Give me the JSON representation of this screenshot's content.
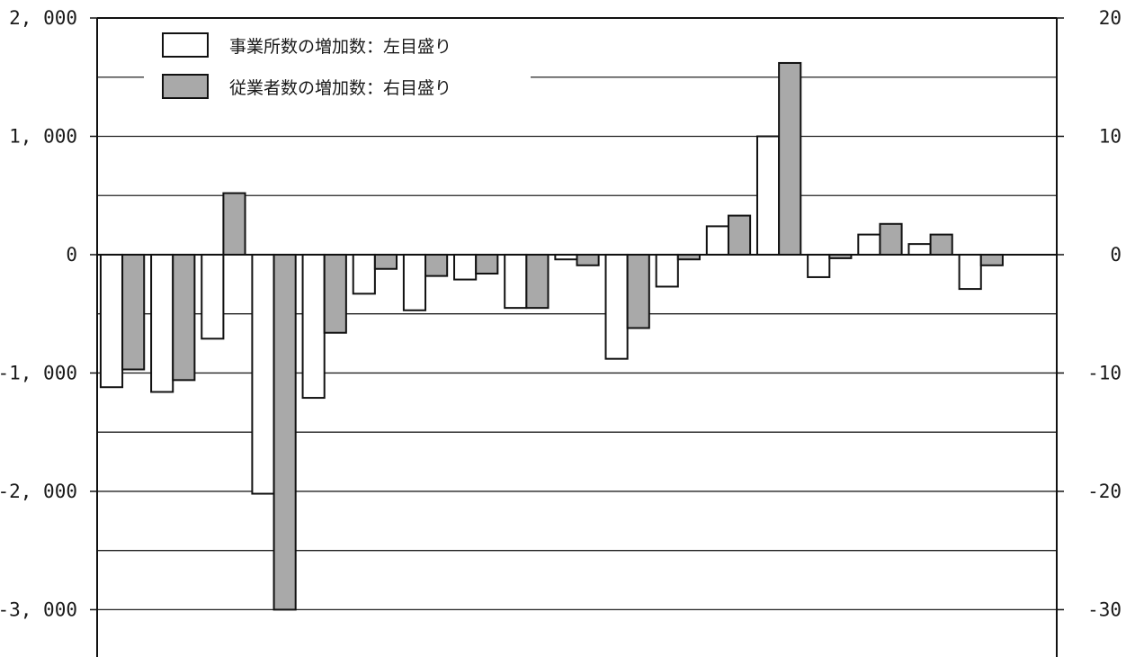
{
  "chart_data": {
    "type": "bar",
    "categories": [
      "",
      "",
      "",
      "",
      "",
      "",
      "",
      "",
      "",
      "",
      "",
      "",
      "",
      "",
      "",
      "",
      "",
      "",
      ""
    ],
    "series": [
      {
        "name": "事業所数の増加数：左目盛り",
        "axis": "left",
        "color": "#ffffff",
        "values": [
          -1120,
          -1160,
          -710,
          -2020,
          -1210,
          -330,
          -470,
          -210,
          -450,
          -40,
          -880,
          -270,
          240,
          1000,
          -190,
          170,
          90,
          -290,
          null
        ]
      },
      {
        "name": "従業者数の増加数：右目盛り",
        "axis": "right",
        "color": "#a9a9a9",
        "values": [
          -9.7,
          -10.6,
          5.2,
          -30,
          -6.6,
          -1.2,
          -1.8,
          -1.6,
          -4.5,
          -0.9,
          -6.2,
          -0.4,
          3.3,
          16.2,
          -0.3,
          2.6,
          1.7,
          -0.9,
          null
        ]
      }
    ],
    "left_axis": {
      "ylim": [
        -3400,
        2000
      ],
      "ticks": [
        2000,
        1000,
        0,
        -1000,
        -2000,
        -3000
      ],
      "tick_labels": [
        "2, 000",
        "1, 000",
        "0",
        "-1, 000",
        "-2, 000",
        "-3, 000"
      ]
    },
    "right_axis": {
      "ylim": [
        -34,
        20
      ],
      "ticks": [
        20,
        10,
        0,
        -10,
        -20,
        -30
      ],
      "tick_labels": [
        "20",
        "10",
        "0",
        "-10",
        "-20",
        "-30"
      ]
    },
    "grid_values": [
      1500,
      1000,
      500,
      -500,
      -1000,
      -1500,
      -2000,
      -2500,
      -3000
    ],
    "grid": true,
    "legend_position": "top-left"
  }
}
